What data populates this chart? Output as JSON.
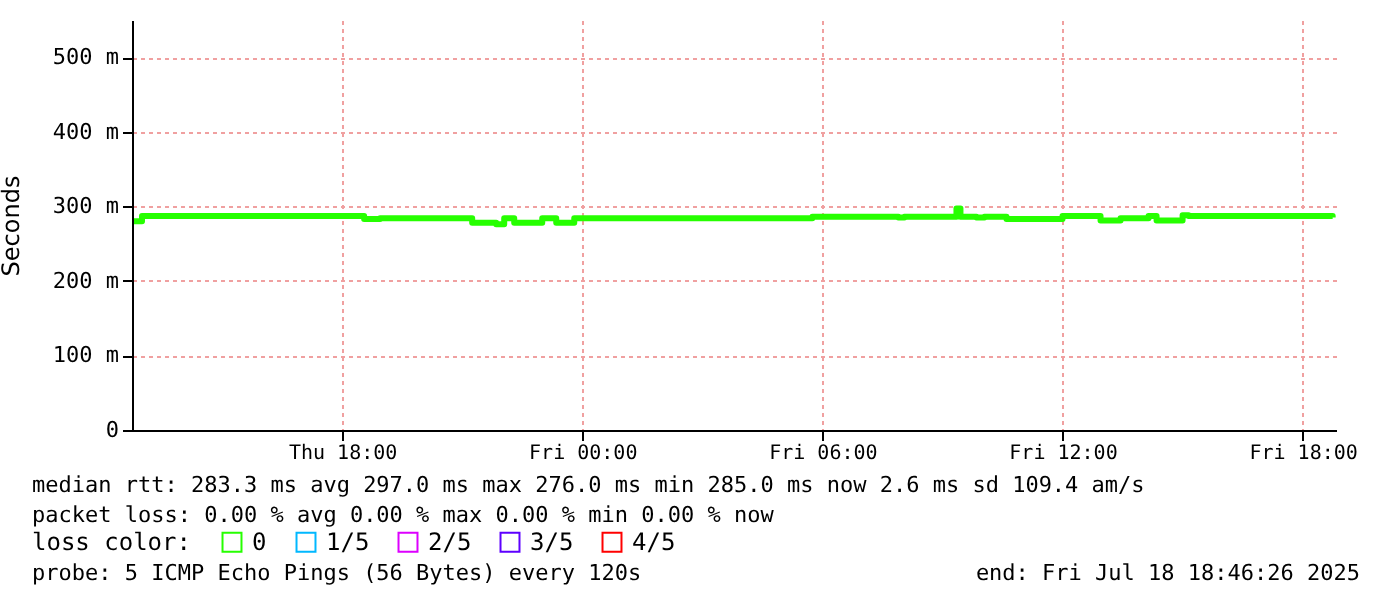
{
  "chart_data": {
    "type": "step",
    "ylabel": "Seconds",
    "legend_title": "loss color:",
    "legend": "bottom",
    "grid": true,
    "marker": "none",
    "line_style": "solid",
    "xlim": [
      "2025-07-17T12:45",
      "2025-07-18T18:50"
    ],
    "xticks": [
      {
        "value": "2025-07-17T18:00",
        "label": "Thu 18:00"
      },
      {
        "value": "2025-07-18T00:00",
        "label": "Fri 00:00"
      },
      {
        "value": "2025-07-18T06:00",
        "label": "Fri 06:00"
      },
      {
        "value": "2025-07-18T12:00",
        "label": "Fri 12:00"
      },
      {
        "value": "2025-07-18T18:00",
        "label": "Fri 18:00"
      }
    ],
    "ylim": [
      0,
      550
    ],
    "yticks": [
      0,
      {
        "value": 100,
        "label": "100 m"
      },
      {
        "value": 200,
        "label": "200 m"
      },
      {
        "value": 300,
        "label": "300 m"
      },
      {
        "value": 400,
        "label": "400 m"
      },
      {
        "value": 500,
        "label": "500 m"
      }
    ],
    "x": [
      "2025-07-17T12:48",
      "2025-07-17T13:00",
      "2025-07-17T18:33",
      "2025-07-17T18:57",
      "2025-07-17T21:15",
      "2025-07-17T21:51",
      "2025-07-17T22:03",
      "2025-07-17T22:18",
      "2025-07-17T23:00",
      "2025-07-17T23:21",
      "2025-07-17T23:48",
      "2025-07-18T05:45",
      "2025-07-18T07:54",
      "2025-07-18T08:03",
      "2025-07-18T09:21",
      "2025-07-18T09:27",
      "2025-07-18T09:51",
      "2025-07-18T10:03",
      "2025-07-18T10:36",
      "2025-07-18T12:00",
      "2025-07-18T12:57",
      "2025-07-18T13:27",
      "2025-07-18T14:09",
      "2025-07-18T14:21",
      "2025-07-18T15:00",
      "2025-07-18T15:09",
      "2025-07-18T18:45"
    ],
    "series": [
      {
        "name": "0",
        "color": "#26ff00",
        "values": [
          280,
          287,
          283,
          284,
          278,
          276,
          284,
          278,
          284,
          278,
          284,
          286,
          285,
          286,
          297,
          286,
          285,
          286,
          283,
          287,
          281,
          284,
          287,
          281,
          288,
          287,
          285
        ]
      },
      {
        "name": "1/5",
        "color": "#00b8ff",
        "values": [
          null,
          null,
          null,
          null,
          null,
          null,
          null,
          null,
          null,
          null,
          null,
          null,
          null,
          null,
          null,
          null,
          null,
          null,
          null,
          null,
          null,
          null,
          null,
          null,
          null,
          null,
          null
        ]
      },
      {
        "name": "2/5",
        "color": "#dd00ff",
        "values": [
          null,
          null,
          null,
          null,
          null,
          null,
          null,
          null,
          null,
          null,
          null,
          null,
          null,
          null,
          null,
          null,
          null,
          null,
          null,
          null,
          null,
          null,
          null,
          null,
          null,
          null,
          null
        ]
      },
      {
        "name": "3/5",
        "color": "#5e00ff",
        "values": [
          null,
          null,
          null,
          null,
          null,
          null,
          null,
          null,
          null,
          null,
          null,
          null,
          null,
          null,
          null,
          null,
          null,
          null,
          null,
          null,
          null,
          null,
          null,
          null,
          null,
          null,
          null
        ]
      },
      {
        "name": "4/5",
        "color": "#ff0000",
        "values": [
          null,
          null,
          null,
          null,
          null,
          null,
          null,
          null,
          null,
          null,
          null,
          null,
          null,
          null,
          null,
          null,
          null,
          null,
          null,
          null,
          null,
          null,
          null,
          null,
          null,
          null,
          null
        ]
      }
    ],
    "annotations": [
      "median rtt:  283.3 ms avg  297.0 ms max  276.0 ms min  285.0 ms now  2.6 ms sd  109.4   am/s",
      "packet loss: 0.00 % avg  0.00 % max  0.00 % min  0.00 % now",
      "probe:       5 ICMP Echo Pings (56 Bytes) every 120s",
      "end: Fri Jul 18 18:46:26 2025"
    ]
  }
}
